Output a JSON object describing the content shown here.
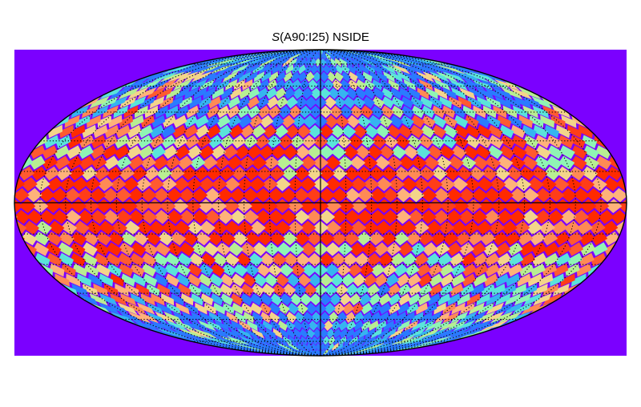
{
  "title": {
    "symbol": "S",
    "rest": "(A90:I25) NSIDE"
  },
  "projection": "mollweide",
  "background_color": "#7B00FF",
  "colormap": "rainbow",
  "colors": {
    "deep_red": "#FF2A00",
    "red": "#FF3D18",
    "orange_red": "#FF5A30",
    "orange": "#FF8A55",
    "peach": "#FFB27A",
    "light_yellow": "#F3D58A",
    "pale_green": "#B8EE92",
    "aquamarine": "#8FF5B4",
    "cyan": "#5AE4DA",
    "sky_blue": "#36B4F0",
    "blue": "#2A7BFF",
    "violet": "#7B00FF"
  },
  "graticule": {
    "style": "dotted",
    "meridian_step_deg": 15,
    "parallel_step_deg": 15
  },
  "central_meridian": "solid",
  "equator": "solid",
  "map_value_note": "high values (red) concentrated near equator; lower values (green/blue) toward poles"
}
